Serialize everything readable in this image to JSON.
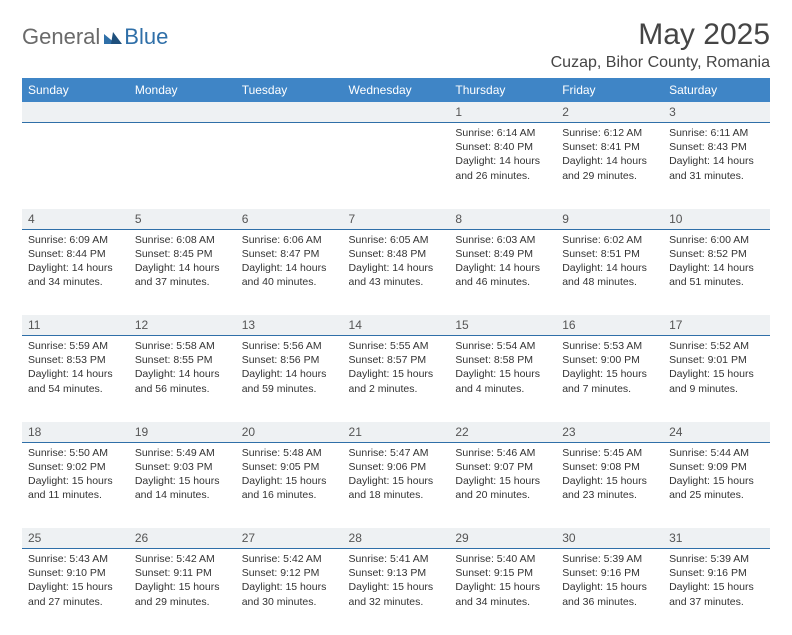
{
  "brand": {
    "general": "General",
    "blue": "Blue"
  },
  "title": "May 2025",
  "location": "Cuzap, Bihor County, Romania",
  "colors": {
    "header_bg": "#3f85c6",
    "header_fg": "#ffffff",
    "daynum_bg": "#eef1f3",
    "row_divider": "#2f6fa8",
    "logo_gray": "#6a6a6a",
    "logo_blue": "#2f6fa8"
  },
  "weekdays": [
    "Sunday",
    "Monday",
    "Tuesday",
    "Wednesday",
    "Thursday",
    "Friday",
    "Saturday"
  ],
  "weeks": [
    [
      null,
      null,
      null,
      null,
      {
        "n": "1",
        "sunrise": "6:14 AM",
        "sunset": "8:40 PM",
        "daylight": "14 hours and 26 minutes."
      },
      {
        "n": "2",
        "sunrise": "6:12 AM",
        "sunset": "8:41 PM",
        "daylight": "14 hours and 29 minutes."
      },
      {
        "n": "3",
        "sunrise": "6:11 AM",
        "sunset": "8:43 PM",
        "daylight": "14 hours and 31 minutes."
      }
    ],
    [
      {
        "n": "4",
        "sunrise": "6:09 AM",
        "sunset": "8:44 PM",
        "daylight": "14 hours and 34 minutes."
      },
      {
        "n": "5",
        "sunrise": "6:08 AM",
        "sunset": "8:45 PM",
        "daylight": "14 hours and 37 minutes."
      },
      {
        "n": "6",
        "sunrise": "6:06 AM",
        "sunset": "8:47 PM",
        "daylight": "14 hours and 40 minutes."
      },
      {
        "n": "7",
        "sunrise": "6:05 AM",
        "sunset": "8:48 PM",
        "daylight": "14 hours and 43 minutes."
      },
      {
        "n": "8",
        "sunrise": "6:03 AM",
        "sunset": "8:49 PM",
        "daylight": "14 hours and 46 minutes."
      },
      {
        "n": "9",
        "sunrise": "6:02 AM",
        "sunset": "8:51 PM",
        "daylight": "14 hours and 48 minutes."
      },
      {
        "n": "10",
        "sunrise": "6:00 AM",
        "sunset": "8:52 PM",
        "daylight": "14 hours and 51 minutes."
      }
    ],
    [
      {
        "n": "11",
        "sunrise": "5:59 AM",
        "sunset": "8:53 PM",
        "daylight": "14 hours and 54 minutes."
      },
      {
        "n": "12",
        "sunrise": "5:58 AM",
        "sunset": "8:55 PM",
        "daylight": "14 hours and 56 minutes."
      },
      {
        "n": "13",
        "sunrise": "5:56 AM",
        "sunset": "8:56 PM",
        "daylight": "14 hours and 59 minutes."
      },
      {
        "n": "14",
        "sunrise": "5:55 AM",
        "sunset": "8:57 PM",
        "daylight": "15 hours and 2 minutes."
      },
      {
        "n": "15",
        "sunrise": "5:54 AM",
        "sunset": "8:58 PM",
        "daylight": "15 hours and 4 minutes."
      },
      {
        "n": "16",
        "sunrise": "5:53 AM",
        "sunset": "9:00 PM",
        "daylight": "15 hours and 7 minutes."
      },
      {
        "n": "17",
        "sunrise": "5:52 AM",
        "sunset": "9:01 PM",
        "daylight": "15 hours and 9 minutes."
      }
    ],
    [
      {
        "n": "18",
        "sunrise": "5:50 AM",
        "sunset": "9:02 PM",
        "daylight": "15 hours and 11 minutes."
      },
      {
        "n": "19",
        "sunrise": "5:49 AM",
        "sunset": "9:03 PM",
        "daylight": "15 hours and 14 minutes."
      },
      {
        "n": "20",
        "sunrise": "5:48 AM",
        "sunset": "9:05 PM",
        "daylight": "15 hours and 16 minutes."
      },
      {
        "n": "21",
        "sunrise": "5:47 AM",
        "sunset": "9:06 PM",
        "daylight": "15 hours and 18 minutes."
      },
      {
        "n": "22",
        "sunrise": "5:46 AM",
        "sunset": "9:07 PM",
        "daylight": "15 hours and 20 minutes."
      },
      {
        "n": "23",
        "sunrise": "5:45 AM",
        "sunset": "9:08 PM",
        "daylight": "15 hours and 23 minutes."
      },
      {
        "n": "24",
        "sunrise": "5:44 AM",
        "sunset": "9:09 PM",
        "daylight": "15 hours and 25 minutes."
      }
    ],
    [
      {
        "n": "25",
        "sunrise": "5:43 AM",
        "sunset": "9:10 PM",
        "daylight": "15 hours and 27 minutes."
      },
      {
        "n": "26",
        "sunrise": "5:42 AM",
        "sunset": "9:11 PM",
        "daylight": "15 hours and 29 minutes."
      },
      {
        "n": "27",
        "sunrise": "5:42 AM",
        "sunset": "9:12 PM",
        "daylight": "15 hours and 30 minutes."
      },
      {
        "n": "28",
        "sunrise": "5:41 AM",
        "sunset": "9:13 PM",
        "daylight": "15 hours and 32 minutes."
      },
      {
        "n": "29",
        "sunrise": "5:40 AM",
        "sunset": "9:15 PM",
        "daylight": "15 hours and 34 minutes."
      },
      {
        "n": "30",
        "sunrise": "5:39 AM",
        "sunset": "9:16 PM",
        "daylight": "15 hours and 36 minutes."
      },
      {
        "n": "31",
        "sunrise": "5:39 AM",
        "sunset": "9:16 PM",
        "daylight": "15 hours and 37 minutes."
      }
    ]
  ],
  "labels": {
    "sunrise": "Sunrise: ",
    "sunset": "Sunset: ",
    "daylight": "Daylight: "
  }
}
